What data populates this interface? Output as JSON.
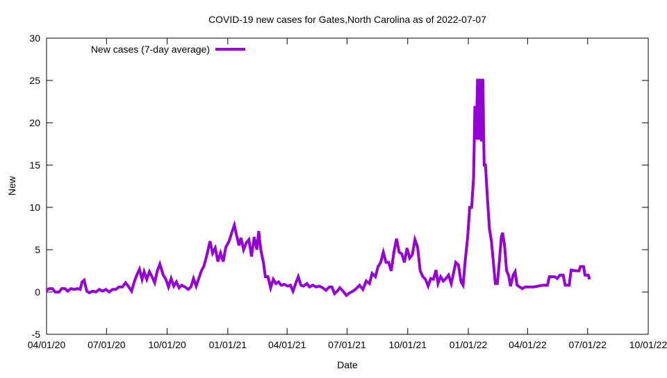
{
  "chart_data": {
    "type": "line",
    "title": "COVID-19 new cases for Gates,North Carolina as of 2022-07-07",
    "xlabel": "Date",
    "ylabel": "New",
    "xlim": [
      "2020-04-01",
      "2022-10-01"
    ],
    "ylim": [
      -5,
      30
    ],
    "yticks": [
      -5,
      0,
      5,
      10,
      15,
      20,
      25,
      30
    ],
    "xticks": [
      {
        "date": "2020-04-01",
        "label": "04/01/20"
      },
      {
        "date": "2020-07-01",
        "label": "07/01/20"
      },
      {
        "date": "2020-10-01",
        "label": "10/01/20"
      },
      {
        "date": "2021-01-01",
        "label": "01/01/21"
      },
      {
        "date": "2021-04-01",
        "label": "04/01/21"
      },
      {
        "date": "2021-07-01",
        "label": "07/01/21"
      },
      {
        "date": "2021-10-01",
        "label": "10/01/21"
      },
      {
        "date": "2022-01-01",
        "label": "01/01/22"
      },
      {
        "date": "2022-04-01",
        "label": "04/01/22"
      },
      {
        "date": "2022-07-01",
        "label": "07/01/22"
      },
      {
        "date": "2022-10-01",
        "label": "10/01/22"
      }
    ],
    "grid": false,
    "legend_position": "top-left",
    "series": [
      {
        "name": "New cases (7-day average)",
        "color": "#9400D3",
        "points": [
          [
            "2020-04-01",
            0.2
          ],
          [
            "2020-04-05",
            0.4
          ],
          [
            "2020-04-10",
            0.4
          ],
          [
            "2020-04-14",
            0.0
          ],
          [
            "2020-04-20",
            0.0
          ],
          [
            "2020-04-24",
            0.4
          ],
          [
            "2020-04-29",
            0.4
          ],
          [
            "2020-05-03",
            0.1
          ],
          [
            "2020-05-08",
            0.4
          ],
          [
            "2020-05-13",
            0.3
          ],
          [
            "2020-05-18",
            0.4
          ],
          [
            "2020-05-22",
            0.3
          ],
          [
            "2020-05-25",
            1.2
          ],
          [
            "2020-05-28",
            1.4
          ],
          [
            "2020-06-01",
            0.1
          ],
          [
            "2020-06-05",
            -0.1
          ],
          [
            "2020-06-10",
            0.1
          ],
          [
            "2020-06-15",
            0.0
          ],
          [
            "2020-06-20",
            0.3
          ],
          [
            "2020-06-25",
            0.1
          ],
          [
            "2020-06-30",
            0.3
          ],
          [
            "2020-07-05",
            0.0
          ],
          [
            "2020-07-10",
            0.3
          ],
          [
            "2020-07-15",
            0.3
          ],
          [
            "2020-07-20",
            0.6
          ],
          [
            "2020-07-25",
            0.6
          ],
          [
            "2020-07-30",
            1.1
          ],
          [
            "2020-08-03",
            0.7
          ],
          [
            "2020-08-08",
            0.1
          ],
          [
            "2020-08-12",
            1.2
          ],
          [
            "2020-08-16",
            2.0
          ],
          [
            "2020-08-20",
            2.7
          ],
          [
            "2020-08-24",
            1.5
          ],
          [
            "2020-08-27",
            2.4
          ],
          [
            "2020-08-31",
            1.5
          ],
          [
            "2020-09-04",
            2.4
          ],
          [
            "2020-09-08",
            1.8
          ],
          [
            "2020-09-12",
            1.1
          ],
          [
            "2020-09-16",
            2.5
          ],
          [
            "2020-09-20",
            3.3
          ],
          [
            "2020-09-25",
            2.0
          ],
          [
            "2020-09-29",
            1.5
          ],
          [
            "2020-10-03",
            0.6
          ],
          [
            "2020-10-07",
            1.6
          ],
          [
            "2020-10-11",
            0.7
          ],
          [
            "2020-10-15",
            1.2
          ],
          [
            "2020-10-19",
            0.5
          ],
          [
            "2020-10-23",
            0.8
          ],
          [
            "2020-10-28",
            0.6
          ],
          [
            "2020-11-02",
            0.3
          ],
          [
            "2020-11-06",
            0.6
          ],
          [
            "2020-11-10",
            1.6
          ],
          [
            "2020-11-14",
            0.7
          ],
          [
            "2020-11-18",
            1.6
          ],
          [
            "2020-11-22",
            2.5
          ],
          [
            "2020-11-26",
            3.1
          ],
          [
            "2020-12-01",
            4.6
          ],
          [
            "2020-12-05",
            6.0
          ],
          [
            "2020-12-09",
            4.6
          ],
          [
            "2020-12-13",
            5.2
          ],
          [
            "2020-12-17",
            3.6
          ],
          [
            "2020-12-21",
            4.6
          ],
          [
            "2020-12-25",
            3.6
          ],
          [
            "2020-12-29",
            5.3
          ],
          [
            "2021-01-03",
            6.0
          ],
          [
            "2021-01-07",
            7.0
          ],
          [
            "2021-01-11",
            7.9
          ],
          [
            "2021-01-14",
            6.8
          ],
          [
            "2021-01-18",
            5.5
          ],
          [
            "2021-01-21",
            6.4
          ],
          [
            "2021-01-25",
            5.0
          ],
          [
            "2021-01-29",
            5.8
          ],
          [
            "2021-02-02",
            6.2
          ],
          [
            "2021-02-06",
            4.2
          ],
          [
            "2021-02-10",
            6.5
          ],
          [
            "2021-02-14",
            5.0
          ],
          [
            "2021-02-17",
            7.2
          ],
          [
            "2021-02-20",
            5.0
          ],
          [
            "2021-02-24",
            3.5
          ],
          [
            "2021-02-27",
            1.8
          ],
          [
            "2021-03-03",
            1.8
          ],
          [
            "2021-03-07",
            0.5
          ],
          [
            "2021-03-11",
            1.5
          ],
          [
            "2021-03-15",
            1.0
          ],
          [
            "2021-03-19",
            1.2
          ],
          [
            "2021-03-23",
            0.8
          ],
          [
            "2021-03-28",
            0.9
          ],
          [
            "2021-04-02",
            0.7
          ],
          [
            "2021-04-06",
            0.8
          ],
          [
            "2021-04-10",
            0.1
          ],
          [
            "2021-04-14",
            1.0
          ],
          [
            "2021-04-18",
            1.8
          ],
          [
            "2021-04-22",
            0.8
          ],
          [
            "2021-04-26",
            0.7
          ],
          [
            "2021-05-01",
            1.0
          ],
          [
            "2021-05-05",
            0.6
          ],
          [
            "2021-05-10",
            0.8
          ],
          [
            "2021-05-15",
            0.6
          ],
          [
            "2021-05-20",
            0.7
          ],
          [
            "2021-05-25",
            0.5
          ],
          [
            "2021-05-30",
            0.2
          ],
          [
            "2021-06-04",
            0.6
          ],
          [
            "2021-06-08",
            0.6
          ],
          [
            "2021-06-12",
            -0.2
          ],
          [
            "2021-06-16",
            0.1
          ],
          [
            "2021-06-20",
            0.5
          ],
          [
            "2021-06-25",
            0.1
          ],
          [
            "2021-06-30",
            -0.4
          ],
          [
            "2021-07-05",
            -0.1
          ],
          [
            "2021-07-10",
            0.1
          ],
          [
            "2021-07-15",
            0.4
          ],
          [
            "2021-07-20",
            0.8
          ],
          [
            "2021-07-25",
            0.3
          ],
          [
            "2021-07-30",
            1.3
          ],
          [
            "2021-08-04",
            1.0
          ],
          [
            "2021-08-08",
            2.2
          ],
          [
            "2021-08-13",
            1.8
          ],
          [
            "2021-08-17",
            3.0
          ],
          [
            "2021-08-21",
            3.5
          ],
          [
            "2021-08-25",
            4.7
          ],
          [
            "2021-08-29",
            3.5
          ],
          [
            "2021-09-02",
            3.5
          ],
          [
            "2021-09-06",
            2.5
          ],
          [
            "2021-09-10",
            4.7
          ],
          [
            "2021-09-14",
            6.3
          ],
          [
            "2021-09-18",
            4.7
          ],
          [
            "2021-09-22",
            4.5
          ],
          [
            "2021-09-26",
            3.5
          ],
          [
            "2021-09-30",
            5.2
          ],
          [
            "2021-10-04",
            4.0
          ],
          [
            "2021-10-08",
            4.4
          ],
          [
            "2021-10-12",
            6.2
          ],
          [
            "2021-10-16",
            5.3
          ],
          [
            "2021-10-20",
            2.5
          ],
          [
            "2021-10-24",
            1.8
          ],
          [
            "2021-10-28",
            1.5
          ],
          [
            "2021-11-01",
            0.7
          ],
          [
            "2021-11-05",
            1.6
          ],
          [
            "2021-11-09",
            1.5
          ],
          [
            "2021-11-13",
            2.6
          ],
          [
            "2021-11-16",
            1.0
          ],
          [
            "2021-11-20",
            1.8
          ],
          [
            "2021-11-24",
            1.3
          ],
          [
            "2021-11-28",
            1.6
          ],
          [
            "2021-12-02",
            2.0
          ],
          [
            "2021-12-06",
            1.0
          ],
          [
            "2021-12-10",
            2.4
          ],
          [
            "2021-12-13",
            3.5
          ],
          [
            "2021-12-17",
            3.2
          ],
          [
            "2021-12-21",
            1.2
          ],
          [
            "2021-12-24",
            0.8
          ],
          [
            "2021-12-27",
            3.5
          ],
          [
            "2021-12-31",
            6.5
          ],
          [
            "2022-01-03",
            10.0
          ],
          [
            "2022-01-06",
            10.0
          ],
          [
            "2022-01-09",
            13.5
          ],
          [
            "2022-01-11",
            22.0
          ],
          [
            "2022-01-13",
            18.0
          ],
          [
            "2022-01-15",
            25.2
          ],
          [
            "2022-01-17",
            18.0
          ],
          [
            "2022-01-19",
            25.2
          ],
          [
            "2022-01-21",
            17.8
          ],
          [
            "2022-01-23",
            25.2
          ],
          [
            "2022-01-25",
            15.0
          ],
          [
            "2022-01-27",
            15.0
          ],
          [
            "2022-01-30",
            11.0
          ],
          [
            "2022-02-02",
            7.5
          ],
          [
            "2022-02-05",
            6.0
          ],
          [
            "2022-02-08",
            3.5
          ],
          [
            "2022-02-11",
            1.0
          ],
          [
            "2022-02-14",
            1.0
          ],
          [
            "2022-02-17",
            3.5
          ],
          [
            "2022-02-20",
            6.5
          ],
          [
            "2022-02-22",
            7.0
          ],
          [
            "2022-02-25",
            5.5
          ],
          [
            "2022-02-28",
            2.5
          ],
          [
            "2022-03-03",
            2.0
          ],
          [
            "2022-03-06",
            0.7
          ],
          [
            "2022-03-10",
            2.0
          ],
          [
            "2022-03-13",
            2.4
          ],
          [
            "2022-03-16",
            0.8
          ],
          [
            "2022-03-20",
            0.6
          ],
          [
            "2022-03-24",
            0.4
          ],
          [
            "2022-03-28",
            0.6
          ],
          [
            "2022-04-03",
            0.6
          ],
          [
            "2022-04-10",
            0.6
          ],
          [
            "2022-04-17",
            0.7
          ],
          [
            "2022-04-24",
            0.8
          ],
          [
            "2022-05-01",
            0.8
          ],
          [
            "2022-05-04",
            1.8
          ],
          [
            "2022-05-12",
            1.8
          ],
          [
            "2022-05-16",
            1.6
          ],
          [
            "2022-05-20",
            2.0
          ],
          [
            "2022-05-25",
            2.0
          ],
          [
            "2022-05-28",
            0.8
          ],
          [
            "2022-06-03",
            0.8
          ],
          [
            "2022-06-06",
            2.6
          ],
          [
            "2022-06-13",
            2.5
          ],
          [
            "2022-06-18",
            2.5
          ],
          [
            "2022-06-20",
            3.0
          ],
          [
            "2022-06-25",
            3.0
          ],
          [
            "2022-06-27",
            2.0
          ],
          [
            "2022-07-02",
            2.0
          ],
          [
            "2022-07-04",
            1.5
          ]
        ]
      }
    ]
  }
}
